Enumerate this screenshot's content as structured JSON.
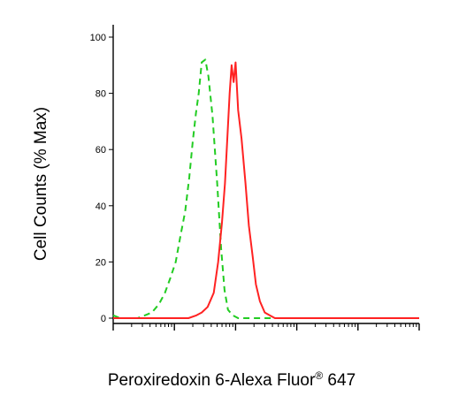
{
  "chart_data": {
    "type": "line",
    "xlabel": "Peroxiredoxin 6-Alexa Fluor",
    "xlabel_superscript": "®",
    "xlabel_suffix": " 647",
    "ylabel": "Cell Counts (% Max)",
    "xscale": "log",
    "xlim": [
      1,
      100000
    ],
    "ylim": [
      0,
      100
    ],
    "yticks": [
      "0",
      "20",
      "40",
      "60",
      "80",
      "100"
    ],
    "grid": false,
    "series": [
      {
        "color": "#22cc22",
        "style": "dashed",
        "x": [
          1,
          1.3,
          1.8,
          2.5,
          3.3,
          4.3,
          5.6,
          7,
          8.5,
          10.5,
          12.5,
          15,
          17.5,
          20,
          22.5,
          25,
          28,
          32,
          36,
          42,
          50,
          58,
          66,
          75,
          90,
          110,
          150,
          250,
          100000
        ],
        "y": [
          1,
          0,
          0,
          0,
          1,
          2,
          5,
          9,
          14,
          20,
          29,
          38,
          50,
          63,
          73,
          80,
          91,
          92,
          86,
          72,
          48,
          25,
          10,
          3,
          1,
          0,
          0,
          0,
          0
        ]
      },
      {
        "color": "#ff2222",
        "style": "solid",
        "x": [
          1,
          10,
          17,
          23,
          28,
          35,
          44,
          52,
          60,
          67,
          73,
          80,
          86,
          93,
          100,
          110,
          125,
          145,
          165,
          190,
          215,
          250,
          300,
          360,
          440,
          600,
          1000,
          100000
        ],
        "y": [
          0,
          0,
          0,
          1,
          2,
          4,
          9,
          20,
          34,
          48,
          63,
          80,
          90,
          84,
          91,
          74,
          64,
          48,
          33,
          22,
          12,
          6,
          2,
          1,
          0,
          0,
          0,
          0
        ]
      }
    ]
  }
}
